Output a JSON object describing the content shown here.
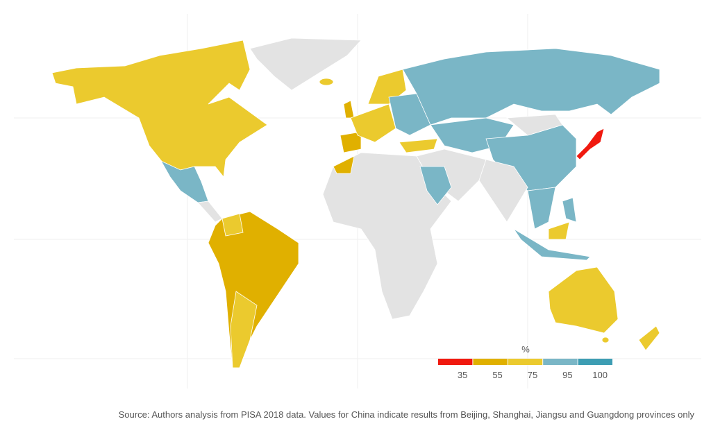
{
  "legend": {
    "title": "%",
    "ticks": [
      35,
      55,
      75,
      95,
      100
    ],
    "colors": [
      "#f0190f",
      "#e0b000",
      "#ebca2e",
      "#7ab6c6",
      "#3d9db3"
    ]
  },
  "no_data_color": "#e3e3e3",
  "source": "Source: Authors analysis from PISA 2018 data. Values for China indicate results from Beijing, Shanghai, Jiangsu and Guangdong provinces only"
}
